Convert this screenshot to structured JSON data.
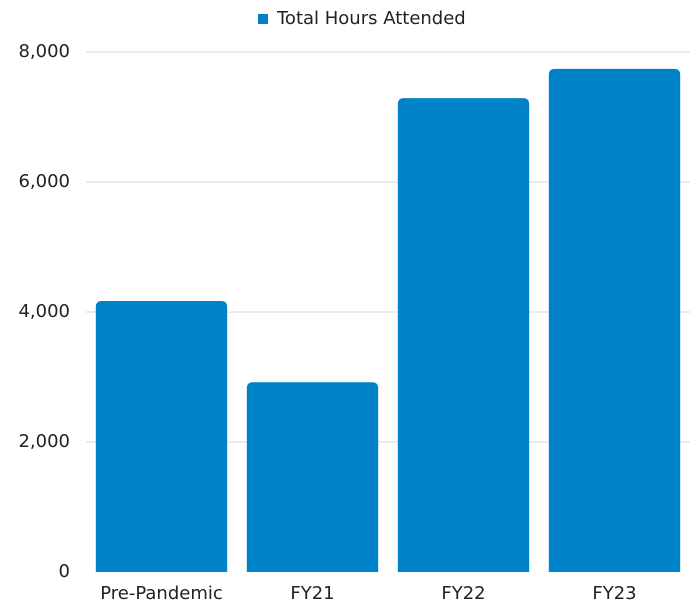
{
  "chart_data": {
    "type": "bar",
    "categories": [
      "Pre-Pandemic",
      "FY21",
      "FY22",
      "FY23"
    ],
    "series": [
      {
        "name": "Total Hours Attended",
        "color": "#0082c8",
        "values": [
          4170,
          2920,
          7290,
          7740
        ]
      }
    ],
    "ylim": [
      0,
      8000
    ],
    "yticks": [
      0,
      {
        "value": 2000,
        "label": "2,000"
      },
      {
        "value": 4000,
        "label": "4,000"
      },
      {
        "value": 6000,
        "label": "6,000"
      },
      {
        "value": 8000,
        "label": "8,000"
      }
    ],
    "grid": true,
    "legend": "top"
  }
}
